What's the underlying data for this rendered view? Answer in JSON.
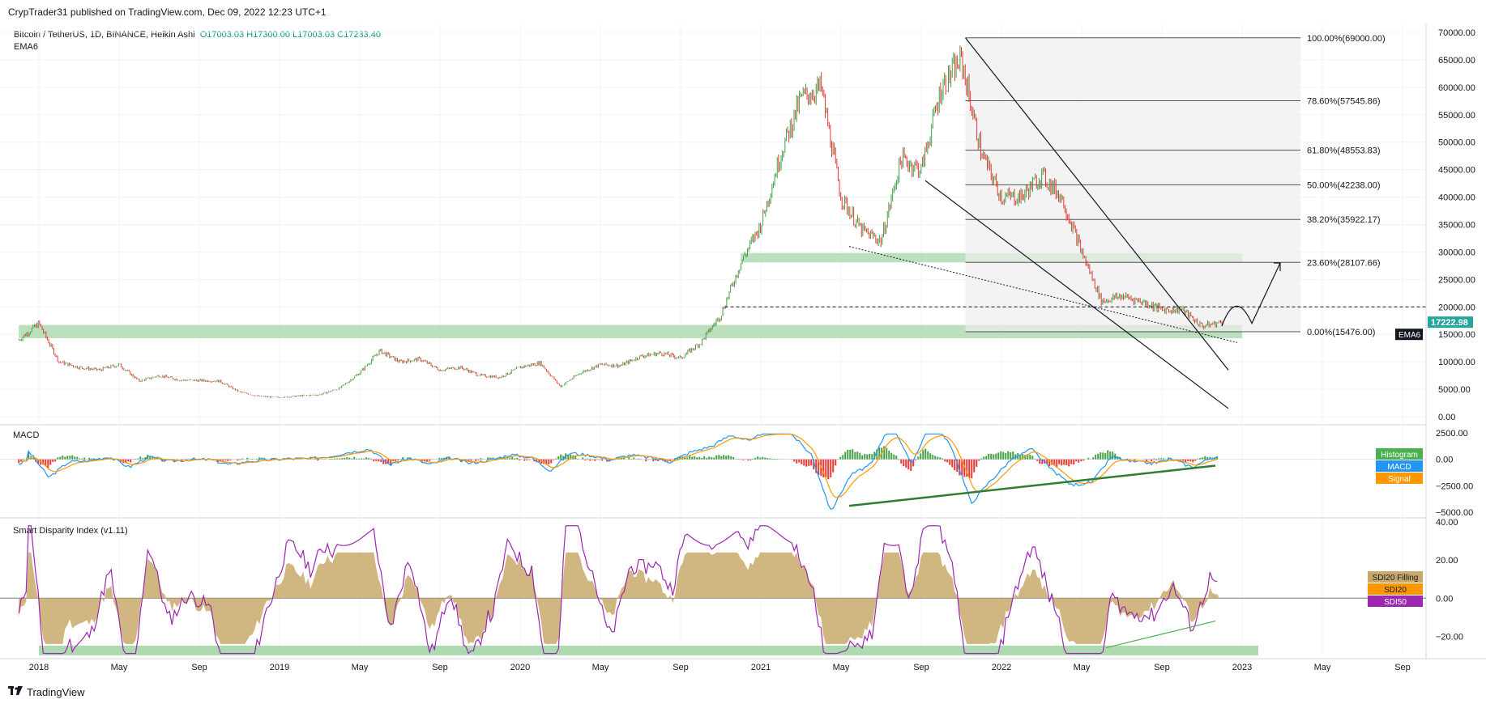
{
  "header": {
    "published": "CrypTrader31 published on TradingView.com, Dec 09, 2022 12:23 UTC+1"
  },
  "legend": {
    "symbol": "Bitcoin / TetherUS, 1D, BINANCE, Heikin Ashi",
    "open": "O17003.03",
    "high": "H17300.00",
    "low": "L17003.03",
    "close": "C17233.40",
    "ema": "EMA6"
  },
  "footer": {
    "brand": "TradingView",
    "logo": "tradingview-logo-icon"
  },
  "colors": {
    "up": "#26a69a",
    "candle_up": "#43a047",
    "candle_down": "#e53935",
    "zone": "#a5d6a7",
    "fib_box": "#eeeeee",
    "macd": "#2196f3",
    "signal": "#ff9800",
    "sdi20": "#c8a96a",
    "sdi50": "#9c27b0",
    "price_tag": "#26a69a",
    "ema_tag": "#131722"
  },
  "chart_data": {
    "type": "line",
    "title": "Bitcoin / TetherUS, 1D, BINANCE, Heikin Ashi",
    "x_ticks": [
      "2018",
      "May",
      "Sep",
      "2019",
      "May",
      "Sep",
      "2020",
      "May",
      "Sep",
      "2021",
      "May",
      "Sep",
      "2022",
      "May",
      "Sep",
      "2023",
      "May",
      "Sep"
    ],
    "price_panel": {
      "y_ticks": [
        "70000.00",
        "65000.00",
        "60000.00",
        "55000.00",
        "50000.00",
        "45000.00",
        "40000.00",
        "35000.00",
        "30000.00",
        "25000.00",
        "20000.00",
        "15000.00",
        "10000.00",
        "5000.00",
        "0.00"
      ],
      "ylim": [
        0,
        70000
      ],
      "last_price": "17222.98",
      "ema_tag": "EMA6",
      "series": [
        {
          "approx_close_path": [
            [
              "2017-12",
              14000
            ],
            [
              "2018-01",
              17000
            ],
            [
              "2018-02",
              10000
            ],
            [
              "2018-03",
              9000
            ],
            [
              "2018-04",
              8500
            ],
            [
              "2018-05",
              9500
            ],
            [
              "2018-06",
              6500
            ],
            [
              "2018-07",
              7500
            ],
            [
              "2018-08",
              6700
            ],
            [
              "2018-09",
              6600
            ],
            [
              "2018-10",
              6500
            ],
            [
              "2018-11",
              4500
            ],
            [
              "2018-12",
              3700
            ],
            [
              "2019-01",
              3500
            ],
            [
              "2019-02",
              3800
            ],
            [
              "2019-03",
              4000
            ],
            [
              "2019-04",
              5200
            ],
            [
              "2019-05",
              8000
            ],
            [
              "2019-06",
              12000
            ],
            [
              "2019-07",
              10000
            ],
            [
              "2019-08",
              10500
            ],
            [
              "2019-09",
              8500
            ],
            [
              "2019-10",
              9000
            ],
            [
              "2019-11",
              7500
            ],
            [
              "2019-12",
              7200
            ],
            [
              "2020-01",
              9000
            ],
            [
              "2020-02",
              9800
            ],
            [
              "2020-03",
              5500
            ],
            [
              "2020-04",
              8000
            ],
            [
              "2020-05",
              9500
            ],
            [
              "2020-06",
              9300
            ],
            [
              "2020-07",
              11000
            ],
            [
              "2020-08",
              11600
            ],
            [
              "2020-09",
              10700
            ],
            [
              "2020-10",
              13500
            ],
            [
              "2020-11",
              18500
            ],
            [
              "2020-12",
              28000
            ],
            [
              "2021-01",
              35000
            ],
            [
              "2021-02",
              48000
            ],
            [
              "2021-03",
              58000
            ],
            [
              "2021-04",
              60000
            ],
            [
              "2021-05",
              40000
            ],
            [
              "2021-06",
              34000
            ],
            [
              "2021-07",
              32000
            ],
            [
              "2021-08",
              47000
            ],
            [
              "2021-09",
              45000
            ],
            [
              "2021-10",
              60000
            ],
            [
              "2021-11",
              65000
            ],
            [
              "2021-12",
              48000
            ],
            [
              "2022-01",
              40000
            ],
            [
              "2022-02",
              40000
            ],
            [
              "2022-03",
              44000
            ],
            [
              "2022-04",
              40000
            ],
            [
              "2022-05",
              30000
            ],
            [
              "2022-06",
              21000
            ],
            [
              "2022-07",
              22000
            ],
            [
              "2022-08",
              21000
            ],
            [
              "2022-09",
              19500
            ],
            [
              "2022-10",
              19500
            ],
            [
              "2022-11",
              16500
            ],
            [
              "2022-12",
              17200
            ]
          ]
        }
      ],
      "fib_levels": [
        {
          "label": "100.00%(69000.00)",
          "price": 69000
        },
        {
          "label": "78.60%(57545.86)",
          "price": 57545.86
        },
        {
          "label": "61.80%(48553.83)",
          "price": 48553.83
        },
        {
          "label": "50.00%(42238.00)",
          "price": 42238.0
        },
        {
          "label": "38.20%(35922.17)",
          "price": 35922.17
        },
        {
          "label": "23.60%(28107.66)",
          "price": 28107.66
        },
        {
          "label": "0.00%(15476.00)",
          "price": 15476.0
        }
      ],
      "zones": [
        {
          "from": "2017-12",
          "to": "2023-01",
          "low": 14300,
          "high": 16700
        },
        {
          "from": "2020-12",
          "to": "2023-01",
          "low": 28100,
          "high": 29800
        }
      ],
      "dashed_level": 20000
    },
    "macd_panel": {
      "title": "MACD",
      "y_ticks": [
        "2500.00",
        "0.00",
        "−2500.00",
        "−5000.00"
      ],
      "ylim": [
        -5000,
        2500
      ],
      "labels": [
        "Histogram",
        "MACD",
        "Signal"
      ]
    },
    "sdi_panel": {
      "title": "Smart Disparity Index (v1.11)",
      "y_ticks": [
        "40.00",
        "20.00",
        "0.00",
        "−20.00"
      ],
      "ylim": [
        -30,
        40
      ],
      "labels": [
        "SDI20 Filling",
        "SDI20",
        "SDI50"
      ]
    }
  }
}
